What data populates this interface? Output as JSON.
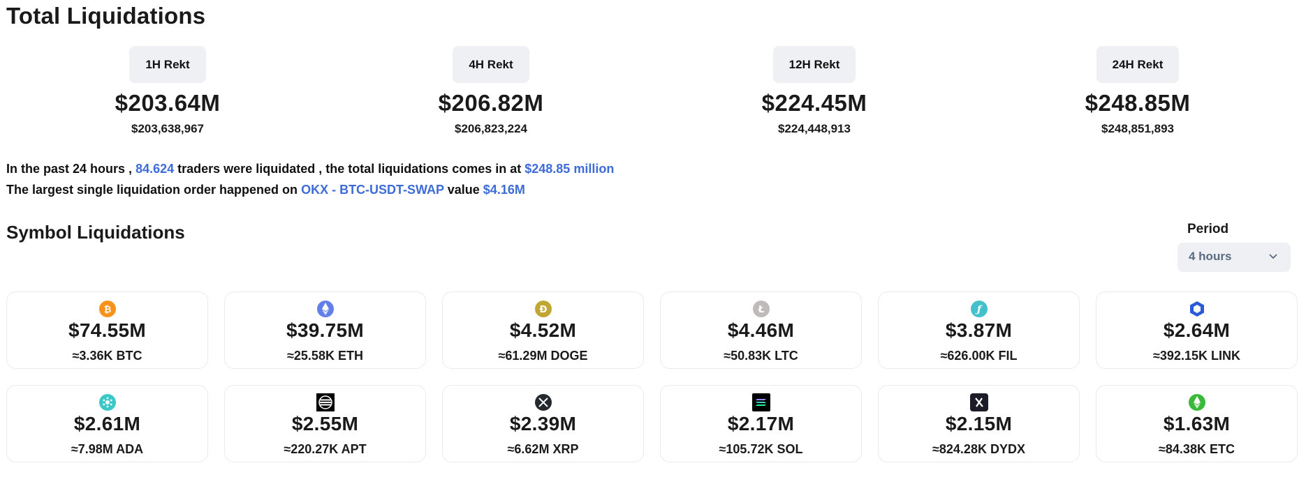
{
  "page_title": "Total Liquidations",
  "rekt": [
    {
      "label": "1H Rekt",
      "amount": "$203.64M",
      "exact": "$203,638,967"
    },
    {
      "label": "4H Rekt",
      "amount": "$206.82M",
      "exact": "$206,823,224"
    },
    {
      "label": "12H Rekt",
      "amount": "$224.45M",
      "exact": "$224,448,913"
    },
    {
      "label": "24H Rekt",
      "amount": "$248.85M",
      "exact": "$248,851,893"
    }
  ],
  "summary": {
    "line1_a": "In the past 24 hours ,",
    "traders": "84.624",
    "line1_b": "traders were liquidated , the total liquidations comes in at",
    "total": "$248.85 million",
    "line2_a": "The largest single liquidation order happened on",
    "order": "OKX - BTC-USDT-SWAP",
    "line2_b": "value",
    "value": "$4.16M"
  },
  "symbols_title": "Symbol Liquidations",
  "period": {
    "label": "Period",
    "value": "4 hours"
  },
  "symbols": [
    {
      "icon": "btc-icon",
      "amount": "$74.55M",
      "qty": "≈3.36K BTC",
      "color": "#f7931a"
    },
    {
      "icon": "eth-icon",
      "amount": "$39.75M",
      "qty": "≈25.58K ETH",
      "color": "#627eea"
    },
    {
      "icon": "doge-icon",
      "amount": "$4.52M",
      "qty": "≈61.29M DOGE",
      "color": "#c2a633"
    },
    {
      "icon": "ltc-icon",
      "amount": "$4.46M",
      "qty": "≈50.83K LTC",
      "color": "#bfbbbb"
    },
    {
      "icon": "fil-icon",
      "amount": "$3.87M",
      "qty": "≈626.00K FIL",
      "color": "#42c1ca"
    },
    {
      "icon": "link-icon",
      "amount": "$2.64M",
      "qty": "≈392.15K LINK",
      "color": "#2a5ada"
    },
    {
      "icon": "ada-icon",
      "amount": "$2.61M",
      "qty": "≈7.98M ADA",
      "color": "#3cc8c8"
    },
    {
      "icon": "apt-icon",
      "amount": "$2.55M",
      "qty": "≈220.27K APT",
      "color": "#000000"
    },
    {
      "icon": "xrp-icon",
      "amount": "$2.39M",
      "qty": "≈6.62M XRP",
      "color": "#23292f"
    },
    {
      "icon": "sol-icon",
      "amount": "$2.17M",
      "qty": "≈105.72K SOL",
      "color": "#000000"
    },
    {
      "icon": "dydx-icon",
      "amount": "$2.15M",
      "qty": "≈824.28K DYDX",
      "color": "#1c1c28"
    },
    {
      "icon": "etc-icon",
      "amount": "$1.63M",
      "qty": "≈84.38K ETC",
      "color": "#3ab83a"
    }
  ]
}
